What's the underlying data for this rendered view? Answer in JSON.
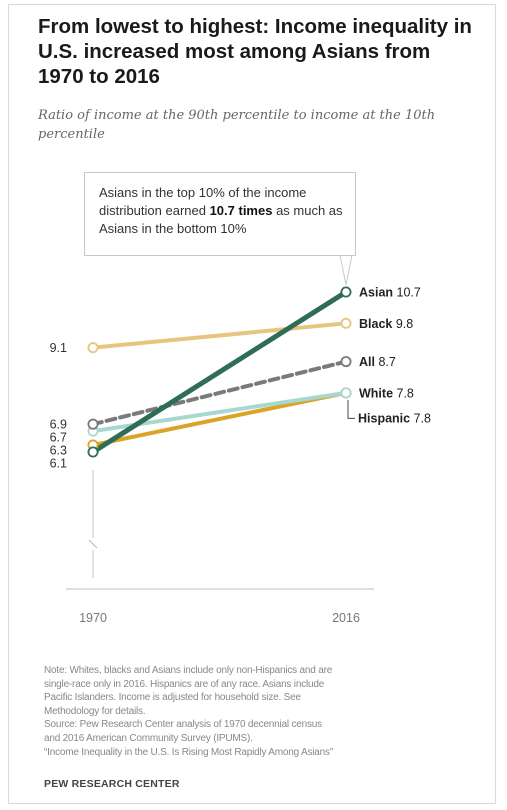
{
  "title": "From lowest to highest: Income inequality in U.S. increased most among Asians from 1970 to 2016",
  "subtitle": "Ratio of income at the 90th percentile to income at the 10th percentile",
  "callout": {
    "text_before": "Asians in the top 10% of the income distribution earned ",
    "text_bold": "10.7 times",
    "text_after": " as much as Asians in the bottom 10%"
  },
  "chart_data": {
    "type": "line",
    "x": [
      "1970",
      "2016"
    ],
    "series": [
      {
        "name": "Black",
        "values": [
          9.1,
          9.8
        ],
        "color": "#e8c57e",
        "dashed": false,
        "start_label": "9.1",
        "end_label": "9.8"
      },
      {
        "name": "White",
        "values": [
          6.3,
          7.8
        ],
        "color": "#d9a428",
        "dashed": false,
        "start_label": "6.3",
        "end_label": "7.8"
      },
      {
        "name": "Hispanic",
        "values": [
          6.7,
          7.8
        ],
        "color": "#a7d8d0",
        "dashed": false,
        "start_label": "6.7",
        "end_label": "7.8"
      },
      {
        "name": "All",
        "values": [
          6.9,
          8.7
        ],
        "color": "#7a7a7a",
        "dashed": true,
        "start_label": "6.9",
        "end_label": "8.7"
      },
      {
        "name": "Asian",
        "values": [
          6.1,
          10.7
        ],
        "color": "#2f6d57",
        "dashed": false,
        "start_label": "6.1",
        "end_label": "10.7"
      }
    ],
    "ylim": [
      6.1,
      10.7
    ],
    "axis_break": true,
    "legend": "direct labels at line ends"
  },
  "notes": [
    "Note: Whites, blacks and Asians include only non-Hispanics and are",
    "single-race only in 2016. Hispanics are of any race. Asians include",
    "Pacific Islanders. Income is adjusted for household size. See",
    "Methodology for details.",
    "Source: Pew Research Center analysis of 1970 decennial census",
    "and 2016 American Community Survey (IPUMS).",
    "“Income Inequality in the U.S. Is Rising Most Rapidly Among Asians”"
  ],
  "credit": "PEW RESEARCH CENTER"
}
